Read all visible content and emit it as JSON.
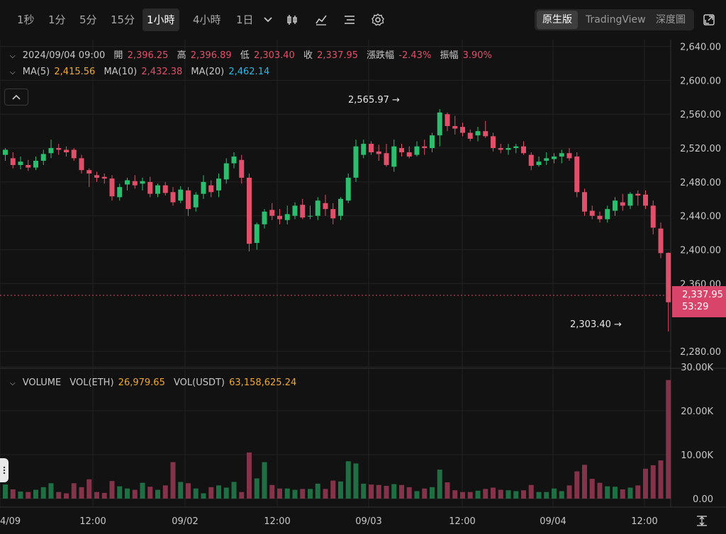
{
  "toolbar": {
    "timeframes": [
      "1秒",
      "1分",
      "5分",
      "15分",
      "1小時",
      "4小時",
      "1日"
    ],
    "active_timeframe": "1小時",
    "views": [
      "原生版",
      "TradingView",
      "深度圖"
    ],
    "active_view": "原生版",
    "icons": [
      "chevron-down-icon",
      "candle-type-icon",
      "indicator-icon",
      "list-icon",
      "gear-icon",
      "fullscreen-icon"
    ]
  },
  "legend": {
    "datetime": "2024/09/04 09:00",
    "open_label": "開",
    "open": "2,396.25",
    "high_label": "高",
    "high": "2,396.89",
    "low_label": "低",
    "low": "2,303.40",
    "close_label": "收",
    "close": "2,337.95",
    "change_label": "漲跌幅",
    "change": "-2.43%",
    "amp_label": "振幅",
    "amp": "3.90%",
    "ma5_label": "MA(5)",
    "ma5": "2,415.56",
    "ma10_label": "MA(10)",
    "ma10": "2,432.38",
    "ma20_label": "MA(20)",
    "ma20": "2,462.14"
  },
  "volume_legend": {
    "title": "VOLUME",
    "eth_label": "VOL(ETH)",
    "eth": "26,979.65",
    "usdt_label": "VOL(USDT)",
    "usdt": "63,158,625.24"
  },
  "price_axis": [
    "2,640.00",
    "2,600.00",
    "2,560.00",
    "2,520.00",
    "2,480.00",
    "2,440.00",
    "2,400.00",
    "2,360.00",
    "2,280.00"
  ],
  "volume_axis": [
    "30.00K",
    "20.00K",
    "10.00K",
    "0.00"
  ],
  "time_axis": [
    "4/09",
    "12:00",
    "09/02",
    "12:00",
    "09/03",
    "12:00",
    "09/04",
    "12:00"
  ],
  "current_price": {
    "value": "2,337.95",
    "countdown": "53:29"
  },
  "annotations": {
    "high": "2,565.97",
    "low": "2,303.40"
  },
  "colors": {
    "up": "#2dbd6e",
    "down": "#e0506a",
    "background": "#121212"
  },
  "chart_data": {
    "type": "candlestick",
    "price_range": [
      2260,
      2648
    ],
    "volume_range": [
      0,
      30000
    ],
    "candles": [
      [
        2512,
        2520,
        2505,
        2518,
        3200
      ],
      [
        2508,
        2515,
        2496,
        2500,
        2100
      ],
      [
        2500,
        2510,
        2495,
        2504,
        1600
      ],
      [
        2500,
        2506,
        2493,
        2497,
        1500
      ],
      [
        2497,
        2510,
        2494,
        2505,
        2000
      ],
      [
        2505,
        2518,
        2500,
        2513,
        2600
      ],
      [
        2514,
        2530,
        2508,
        2520,
        3500
      ],
      [
        2520,
        2525,
        2512,
        2518,
        1500
      ],
      [
        2518,
        2522,
        2510,
        2515,
        1200
      ],
      [
        2518,
        2520,
        2505,
        2508,
        3500
      ],
      [
        2508,
        2512,
        2490,
        2494,
        2600
      ],
      [
        2494,
        2496,
        2474,
        2490,
        4400
      ],
      [
        2488,
        2492,
        2480,
        2485,
        1500
      ],
      [
        2486,
        2490,
        2478,
        2484,
        1300
      ],
      [
        2484,
        2488,
        2458,
        2463,
        4000
      ],
      [
        2462,
        2478,
        2458,
        2474,
        2800
      ],
      [
        2477,
        2485,
        2470,
        2482,
        2300
      ],
      [
        2481,
        2488,
        2472,
        2476,
        2000
      ],
      [
        2478,
        2485,
        2470,
        2481,
        3600
      ],
      [
        2480,
        2486,
        2462,
        2466,
        2700
      ],
      [
        2466,
        2478,
        2462,
        2476,
        2000
      ],
      [
        2476,
        2480,
        2464,
        2467,
        3000
      ],
      [
        2468,
        2474,
        2452,
        2456,
        8300
      ],
      [
        2458,
        2475,
        2455,
        2471,
        3800
      ],
      [
        2470,
        2474,
        2440,
        2448,
        3500
      ],
      [
        2450,
        2468,
        2445,
        2465,
        2300
      ],
      [
        2466,
        2488,
        2460,
        2480,
        1200
      ],
      [
        2476,
        2482,
        2462,
        2468,
        2600
      ],
      [
        2470,
        2490,
        2462,
        2484,
        3000
      ],
      [
        2483,
        2508,
        2478,
        2502,
        2500
      ],
      [
        2502,
        2515,
        2496,
        2510,
        3800
      ],
      [
        2506,
        2512,
        2478,
        2485,
        1500
      ],
      [
        2485,
        2490,
        2398,
        2407,
        10500
      ],
      [
        2408,
        2432,
        2400,
        2430,
        4600
      ],
      [
        2430,
        2448,
        2425,
        2445,
        8300
      ],
      [
        2447,
        2455,
        2435,
        2440,
        3100
      ],
      [
        2440,
        2448,
        2430,
        2436,
        2300
      ],
      [
        2435,
        2452,
        2430,
        2442,
        2300
      ],
      [
        2440,
        2456,
        2436,
        2452,
        2000
      ],
      [
        2453,
        2460,
        2436,
        2438,
        2200
      ],
      [
        2440,
        2452,
        2436,
        2440,
        2200
      ],
      [
        2440,
        2462,
        2435,
        2458,
        3400
      ],
      [
        2455,
        2465,
        2440,
        2448,
        2200
      ],
      [
        2448,
        2455,
        2430,
        2437,
        4100
      ],
      [
        2440,
        2462,
        2435,
        2460,
        3900
      ],
      [
        2458,
        2490,
        2455,
        2485,
        8500
      ],
      [
        2485,
        2530,
        2480,
        2522,
        8000
      ],
      [
        2512,
        2530,
        2508,
        2525,
        3400
      ],
      [
        2525,
        2528,
        2512,
        2515,
        3200
      ],
      [
        2516,
        2524,
        2505,
        2513,
        3100
      ],
      [
        2514,
        2525,
        2498,
        2500,
        2900
      ],
      [
        2498,
        2530,
        2492,
        2522,
        3300
      ],
      [
        2520,
        2525,
        2510,
        2515,
        3100
      ],
      [
        2515,
        2522,
        2508,
        2510,
        2600
      ],
      [
        2512,
        2528,
        2510,
        2522,
        1700
      ],
      [
        2522,
        2530,
        2512,
        2520,
        2300
      ],
      [
        2520,
        2538,
        2515,
        2535,
        2600
      ],
      [
        2535,
        2565.97,
        2522,
        2562,
        6600
      ],
      [
        2560,
        2562,
        2540,
        2546,
        3700
      ],
      [
        2546,
        2558,
        2536,
        2543,
        1900
      ],
      [
        2545,
        2550,
        2534,
        2538,
        1500
      ],
      [
        2538,
        2542,
        2528,
        2531,
        1500
      ],
      [
        2535,
        2545,
        2528,
        2540,
        1800
      ],
      [
        2540,
        2552,
        2532,
        2534,
        2200
      ],
      [
        2534,
        2538,
        2516,
        2520,
        2500
      ],
      [
        2520,
        2525,
        2514,
        2518,
        2000
      ],
      [
        2518,
        2525,
        2512,
        2520,
        1900
      ],
      [
        2520,
        2525,
        2514,
        2522,
        1700
      ],
      [
        2522,
        2528,
        2512,
        2514,
        1900
      ],
      [
        2512,
        2515,
        2494,
        2499,
        3100
      ],
      [
        2500,
        2510,
        2498,
        2504,
        1500
      ],
      [
        2505,
        2515,
        2500,
        2508,
        1500
      ],
      [
        2507,
        2514,
        2502,
        2510,
        2300
      ],
      [
        2510,
        2518,
        2502,
        2514,
        1700
      ],
      [
        2514,
        2520,
        2505,
        2508,
        3000
      ],
      [
        2510,
        2515,
        2462,
        2468,
        6200
      ],
      [
        2468,
        2472,
        2440,
        2445,
        7700
      ],
      [
        2446,
        2452,
        2436,
        2440,
        4500
      ],
      [
        2440,
        2445,
        2432,
        2436,
        3600
      ],
      [
        2436,
        2452,
        2432,
        2448,
        2800
      ],
      [
        2446,
        2462,
        2440,
        2458,
        2700
      ],
      [
        2456,
        2466,
        2446,
        2452,
        2100
      ],
      [
        2452,
        2468,
        2448,
        2466,
        2500
      ],
      [
        2466,
        2470,
        2452,
        2464,
        3000
      ],
      [
        2465,
        2470,
        2448,
        2452,
        6800
      ],
      [
        2452,
        2458,
        2418,
        2426,
        7600
      ],
      [
        2425,
        2432,
        2390,
        2396,
        8700
      ],
      [
        2396.25,
        2396.89,
        2303.4,
        2337.95,
        27000
      ]
    ]
  }
}
